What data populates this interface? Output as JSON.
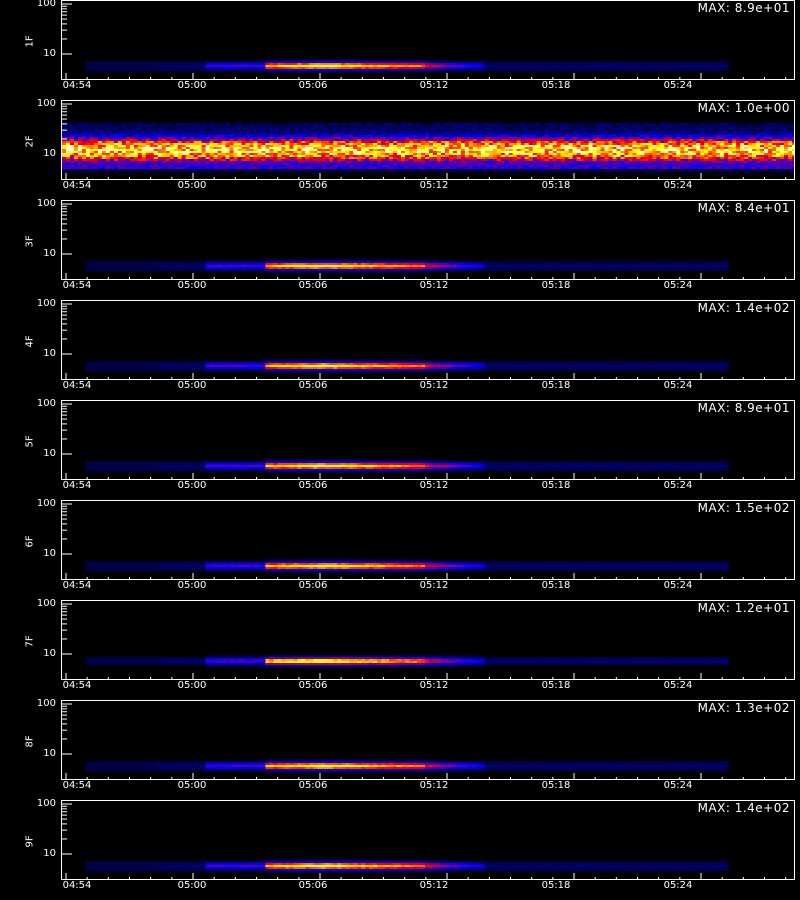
{
  "chart_data": {
    "type": "heatmap",
    "x_tick_labels": [
      "04:54",
      "05:00",
      "05:06",
      "05:12",
      "05:18",
      "05:24"
    ],
    "y_tick_labels": [
      "100",
      "10"
    ],
    "x_title": "",
    "panels": [
      {
        "label": "1F",
        "max_text": "MAX: 8.9e+01"
      },
      {
        "label": "2F",
        "max_text": "MAX: 1.0e+00"
      },
      {
        "label": "3F",
        "max_text": "MAX: 8.4e+01"
      },
      {
        "label": "4F",
        "max_text": "MAX: 1.4e+02"
      },
      {
        "label": "5F",
        "max_text": "MAX: 8.9e+01"
      },
      {
        "label": "6F",
        "max_text": "MAX: 1.5e+02"
      },
      {
        "label": "7F",
        "max_text": "MAX: 1.2e+01"
      },
      {
        "label": "8F",
        "max_text": "MAX: 1.3e+02"
      },
      {
        "label": "9F",
        "max_text": "MAX: 1.4e+02"
      }
    ],
    "colormap": [
      "#000000",
      "#0000ff",
      "#ff0000",
      "#ffff00",
      "#ffffff"
    ]
  }
}
